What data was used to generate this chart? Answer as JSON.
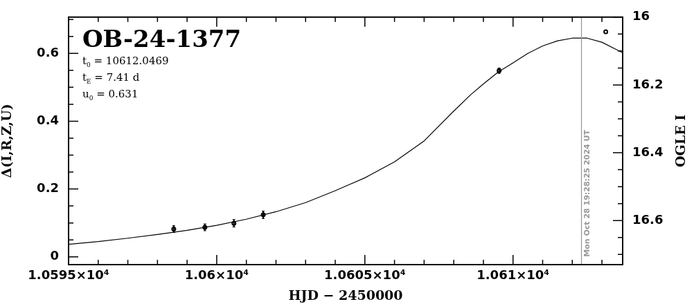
{
  "chart_data": {
    "type": "line",
    "title": "OB-24-1377",
    "xlabel": "HJD − 2450000",
    "ylabel": "Δ(I,R,Z,U)",
    "y2label": "OGLE I",
    "annotations": [
      "t$_{0}$ = 10612.0469",
      "t$_{E}$ = 7.41 d",
      "u$_{0}$ = 0.631",
      {
        "text": "Mon Oct 28 19:28:25 2024 UT",
        "x": 10612.31,
        "y": 0
      }
    ],
    "series": [
      {
        "color": "#000000",
        "marker": "none",
        "x": [
          10595,
          10596,
          10597,
          10598,
          10599,
          10600,
          10601,
          10602,
          10603,
          10604,
          10605,
          10606,
          10607,
          10608,
          10608.57,
          10609,
          10609.5,
          10610,
          10610.5,
          10611,
          10611.5,
          10612,
          10612.5,
          10613,
          10613.7
        ],
        "values": [
          0.037,
          0.045,
          0.055,
          0.066,
          0.078,
          0.093,
          0.111,
          0.133,
          0.16,
          0.195,
          0.233,
          0.28,
          0.342,
          0.43,
          0.478,
          0.51,
          0.545,
          0.572,
          0.6,
          0.622,
          0.637,
          0.645,
          0.645,
          0.633,
          0.602
        ]
      },
      {
        "type": "scatter",
        "color": "#000000",
        "marker": "circle",
        "x": [
          10598.55,
          10599.6,
          10600.58,
          10601.57,
          10609.53
        ],
        "values": [
          0.082,
          0.087,
          0.099,
          0.124,
          0.549
        ],
        "errors": [
          0.01,
          0.01,
          0.011,
          0.011,
          0.008
        ]
      },
      {
        "type": "scatter",
        "color": "#000000",
        "marker": "circle",
        "x": [
          10613.13
        ],
        "values": [
          0.664
        ]
      }
    ],
    "xlim": [
      10595,
      10613.7
    ],
    "xticks": [
      {
        "value": 10595,
        "label": "1.0595×10⁴"
      },
      {
        "value": 10596,
        "label": null
      },
      {
        "value": 10597,
        "label": null
      },
      {
        "value": 10598,
        "label": null
      },
      {
        "value": 10599,
        "label": null
      },
      {
        "value": 10600,
        "label": "1.06×10⁴"
      },
      {
        "value": 10601,
        "label": null
      },
      {
        "value": 10602,
        "label": null
      },
      {
        "value": 10603,
        "label": null
      },
      {
        "value": 10604,
        "label": null
      },
      {
        "value": 10605,
        "label": "1.0605×10⁴"
      },
      {
        "value": 10606,
        "label": null
      },
      {
        "value": 10607,
        "label": null
      },
      {
        "value": 10608,
        "label": null
      },
      {
        "value": 10609,
        "label": null
      },
      {
        "value": 10610,
        "label": "1.061×10⁴"
      },
      {
        "value": 10611,
        "label": null
      },
      {
        "value": 10612,
        "label": null
      },
      {
        "value": 10613,
        "label": null
      }
    ],
    "ylim": [
      -0.023,
      0.707
    ],
    "yticks": [
      0,
      {
        "value": 0.05,
        "label": null
      },
      0.2,
      {
        "value": 0.1,
        "label": null
      },
      {
        "value": 0.15,
        "label": null
      },
      {
        "value": 0.25,
        "label": null
      },
      {
        "value": 0.3,
        "label": null
      },
      {
        "value": 0.35,
        "label": null
      },
      0.4,
      {
        "value": 0.45,
        "label": null
      },
      {
        "value": 0.5,
        "label": null
      },
      {
        "value": 0.55,
        "label": null
      },
      0.6,
      {
        "value": 0.65,
        "label": null
      },
      {
        "value": 0.7,
        "label": null
      }
    ],
    "y2lim": [
      16.73,
      16
    ],
    "y2ticks": [
      16,
      {
        "value": 16.05,
        "label": null
      },
      {
        "value": 16.1,
        "label": null
      },
      {
        "value": 16.15,
        "label": null
      },
      16.2,
      {
        "value": 16.25,
        "label": null
      },
      {
        "value": 16.3,
        "label": null
      },
      {
        "value": 16.35,
        "label": null
      },
      16.4,
      {
        "value": 16.45,
        "label": null
      },
      {
        "value": 16.5,
        "label": null
      },
      {
        "value": 16.55,
        "label": null
      },
      16.6,
      {
        "value": 16.65,
        "label": null
      },
      {
        "value": 16.7,
        "label": null
      }
    ],
    "ref_lines": [
      {
        "axis": "x",
        "value": 10612.31,
        "color": "#999999"
      }
    ],
    "grid": false,
    "legend": false
  }
}
